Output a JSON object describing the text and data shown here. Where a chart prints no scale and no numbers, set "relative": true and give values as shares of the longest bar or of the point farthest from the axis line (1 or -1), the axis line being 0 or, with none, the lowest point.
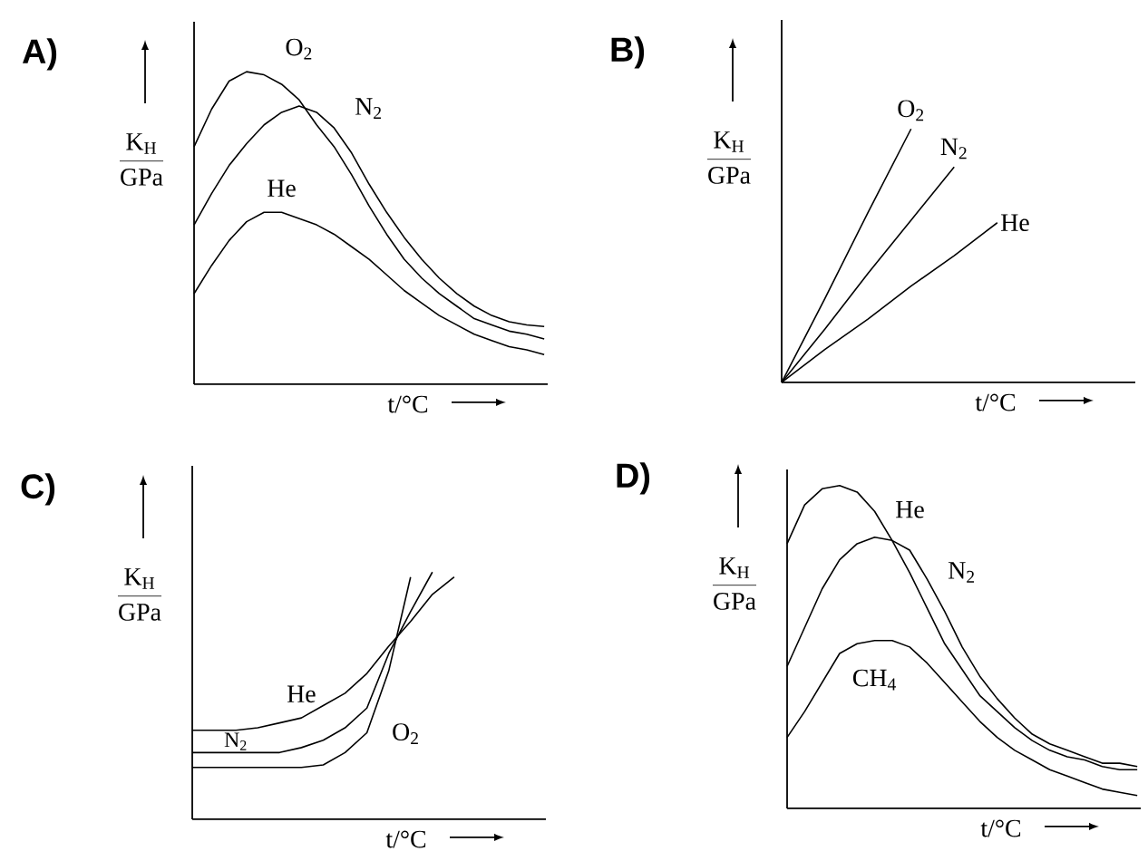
{
  "chart_data": [
    {
      "type": "line",
      "title": "A)",
      "ylabel": "\\frac{\\mathrm{K_H}}{\\mathrm{GPa}}",
      "xlabel": "t/°C",
      "relative": true,
      "line_style": "solid",
      "categories": [
        null,
        null,
        null,
        null,
        null,
        null,
        null,
        null,
        null,
        null,
        null,
        null,
        null,
        null,
        null,
        null,
        null,
        null,
        null,
        null,
        null
      ],
      "series": [
        {
          "name": "O$_{2}$",
          "color": "#000000",
          "values": [
            0.76,
            0.88,
            0.97,
            1.0,
            0.99,
            0.96,
            0.91,
            0.83,
            0.76,
            0.67,
            0.57,
            0.48,
            0.4,
            0.34,
            0.29,
            0.25,
            0.21,
            0.19,
            0.17,
            0.16,
            0.145
          ]
        },
        {
          "name": "N$_{2}$",
          "color": "#000000",
          "values": [
            0.51,
            0.61,
            0.7,
            0.77,
            0.83,
            0.87,
            0.89,
            0.87,
            0.82,
            0.74,
            0.64,
            0.55,
            0.47,
            0.4,
            0.34,
            0.29,
            0.25,
            0.22,
            0.2,
            0.19,
            0.185
          ]
        },
        {
          "name": "He",
          "color": "#000000",
          "values": [
            0.29,
            0.38,
            0.46,
            0.52,
            0.55,
            0.55,
            0.53,
            0.51,
            0.48,
            0.44,
            0.4,
            0.35,
            0.3,
            0.26,
            0.22,
            0.19,
            0.16,
            0.14,
            0.12,
            0.11,
            0.095
          ]
        }
      ]
    },
    {
      "type": "line",
      "title": "B)",
      "ylabel": "\\frac{\\mathrm{K_H}}{\\mathrm{GPa}}",
      "xlabel": "t/°C",
      "relative": true,
      "line_style": "solid",
      "categories": [
        null,
        null,
        null,
        null,
        null,
        null,
        null,
        null,
        null
      ],
      "series": [
        {
          "name": "O$_{2}$",
          "color": "#000000",
          "values": [
            0,
            0.33,
            0.67,
            1.0,
            null,
            null,
            null,
            null,
            null
          ]
        },
        {
          "name": "N$_{2}$",
          "color": "#000000",
          "values": [
            0,
            0.21,
            0.43,
            0.64,
            0.85,
            null,
            null,
            null,
            null
          ]
        },
        {
          "name": "He",
          "color": "#000000",
          "values": [
            0,
            0.13,
            0.25,
            0.38,
            0.5,
            0.63,
            null,
            null,
            null
          ]
        }
      ]
    },
    {
      "type": "line",
      "title": "C)",
      "ylabel": "\\frac{\\mathrm{K_H}}{\\mathrm{GPa}}",
      "xlabel": "t/°C",
      "relative": true,
      "line_style": "solid",
      "categories": [
        null,
        null,
        null,
        null,
        null,
        null,
        null,
        null,
        null,
        null,
        null,
        null,
        null,
        null,
        null,
        null,
        null
      ],
      "series": [
        {
          "name": "He",
          "color": "#000000",
          "values": [
            0.36,
            0.36,
            0.36,
            0.37,
            0.39,
            0.41,
            0.46,
            0.51,
            0.59,
            0.7,
            0.8,
            0.91,
            0.98,
            null,
            null,
            null,
            null
          ]
        },
        {
          "name": "N$_{2}$",
          "color": "#000000",
          "values": [
            0.27,
            0.27,
            0.27,
            0.27,
            0.27,
            0.29,
            0.32,
            0.37,
            0.45,
            0.67,
            0.84,
            1.0,
            null,
            null,
            null,
            null,
            null
          ]
        },
        {
          "name": "O$_{2}$",
          "color": "#000000",
          "values": [
            0.21,
            0.21,
            0.21,
            0.21,
            0.21,
            0.21,
            0.22,
            0.27,
            0.35,
            0.6,
            0.98,
            null,
            null,
            null,
            null,
            null,
            null
          ]
        }
      ]
    },
    {
      "type": "line",
      "title": "D)",
      "ylabel": "\\frac{\\mathrm{K_H}}{\\mathrm{GPa}}",
      "xlabel": "t/°C",
      "relative": true,
      "line_style": "solid",
      "categories": [
        null,
        null,
        null,
        null,
        null,
        null,
        null,
        null,
        null,
        null,
        null,
        null,
        null,
        null,
        null,
        null,
        null,
        null,
        null,
        null,
        null
      ],
      "series": [
        {
          "name": "He",
          "color": "#000000",
          "values": [
            0.82,
            0.94,
            0.99,
            1.0,
            0.98,
            0.92,
            0.83,
            0.73,
            0.62,
            0.51,
            0.43,
            0.35,
            0.3,
            0.25,
            0.21,
            0.18,
            0.16,
            0.15,
            0.13,
            0.12,
            0.12
          ]
        },
        {
          "name": "N$_{2}$",
          "color": "#000000",
          "values": [
            0.44,
            0.56,
            0.68,
            0.77,
            0.82,
            0.84,
            0.83,
            0.8,
            0.71,
            0.61,
            0.5,
            0.41,
            0.34,
            0.28,
            0.23,
            0.2,
            0.18,
            0.16,
            0.14,
            0.14,
            0.13
          ]
        },
        {
          "name": "CH$_{4}$",
          "color": "#000000",
          "values": [
            0.22,
            0.3,
            0.39,
            0.48,
            0.51,
            0.52,
            0.52,
            0.5,
            0.45,
            0.39,
            0.33,
            0.27,
            0.22,
            0.18,
            0.15,
            0.12,
            0.1,
            0.08,
            0.06,
            0.05,
            0.04
          ]
        }
      ]
    }
  ]
}
